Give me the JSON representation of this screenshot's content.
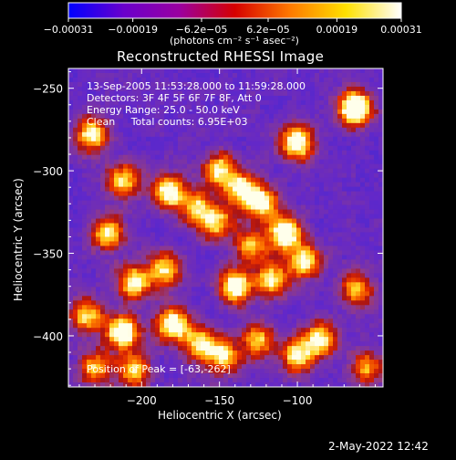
{
  "chart_data": {
    "type": "heatmap",
    "title": "Reconstructed RHESSI Image",
    "xlabel": "Heliocentric X (arcsec)",
    "ylabel": "Heliocentric Y (arcsec)",
    "x_range": [
      -247,
      -45
    ],
    "y_range": [
      -431,
      -238
    ],
    "x_ticks": [
      -200,
      -150,
      -100
    ],
    "y_ticks": [
      -250,
      -300,
      -350,
      -400
    ],
    "x_tick_labels": [
      "−200",
      "−150",
      "−100"
    ],
    "y_tick_labels": [
      "−250",
      "−300",
      "−350",
      "−400"
    ],
    "colorbar": {
      "min": -0.00031,
      "max": 0.00031,
      "ticks": [
        -0.00031,
        -0.00019,
        -6.2e-05,
        6.2e-05,
        0.00019,
        0.00031
      ],
      "tick_labels": [
        "−0.00031",
        "−0.00019",
        "−6.2e−05",
        "6.2e−05",
        "0.00019",
        "0.00031"
      ],
      "unit_label": "(photons cm⁻² s⁻¹ asec⁻²)",
      "colors": [
        "#0000ff",
        "#6a00cc",
        "#9a00a0",
        "#d60000",
        "#ff7a00",
        "#ffe000",
        "#ffffff"
      ]
    },
    "info": {
      "time_range": "13-Sep-2005 11:53:28.000 to 11:59:28.000",
      "detectors": "Detectors: 3F 4F 5F 6F 7F 8F, Att 0",
      "energy": "Energy Range: 25.0 - 50.0 keV",
      "clean": "Clean     Total counts: 6.95E+03"
    },
    "peak": {
      "x": -63,
      "y": -262,
      "label": "Position of Peak = [-63,-262]"
    },
    "hot_spots": [
      {
        "x": -63,
        "y": -262,
        "v": 1.0
      },
      {
        "x": -232,
        "y": -278,
        "v": 0.75
      },
      {
        "x": -100,
        "y": -283,
        "v": 0.85
      },
      {
        "x": -183,
        "y": -313,
        "v": 0.8
      },
      {
        "x": -150,
        "y": -300,
        "v": 0.7
      },
      {
        "x": -212,
        "y": -306,
        "v": 0.65
      },
      {
        "x": -165,
        "y": -322,
        "v": 0.6
      },
      {
        "x": -135,
        "y": -312,
        "v": 0.75
      },
      {
        "x": -122,
        "y": -320,
        "v": 0.7
      },
      {
        "x": -152,
        "y": -332,
        "v": 0.65
      },
      {
        "x": -130,
        "y": -346,
        "v": 0.6
      },
      {
        "x": -222,
        "y": -338,
        "v": 0.7
      },
      {
        "x": -205,
        "y": -368,
        "v": 0.75
      },
      {
        "x": -185,
        "y": -360,
        "v": 0.65
      },
      {
        "x": -108,
        "y": -338,
        "v": 0.85
      },
      {
        "x": -95,
        "y": -355,
        "v": 0.7
      },
      {
        "x": -140,
        "y": -370,
        "v": 0.8
      },
      {
        "x": -116,
        "y": -366,
        "v": 0.7
      },
      {
        "x": -85,
        "y": -402,
        "v": 0.7
      },
      {
        "x": -62,
        "y": -372,
        "v": 0.6
      },
      {
        "x": -235,
        "y": -388,
        "v": 0.65
      },
      {
        "x": -212,
        "y": -398,
        "v": 0.9
      },
      {
        "x": -180,
        "y": -393,
        "v": 0.85
      },
      {
        "x": -162,
        "y": -405,
        "v": 0.7
      },
      {
        "x": -147,
        "y": -413,
        "v": 0.65
      },
      {
        "x": -125,
        "y": -403,
        "v": 0.6
      },
      {
        "x": -100,
        "y": -412,
        "v": 0.7
      },
      {
        "x": -55,
        "y": -420,
        "v": 0.55
      },
      {
        "x": -230,
        "y": -420,
        "v": 0.6
      },
      {
        "x": -205,
        "y": -421,
        "v": 0.65
      }
    ]
  },
  "footer": {
    "datestamp": "2-May-2022 12:42"
  }
}
